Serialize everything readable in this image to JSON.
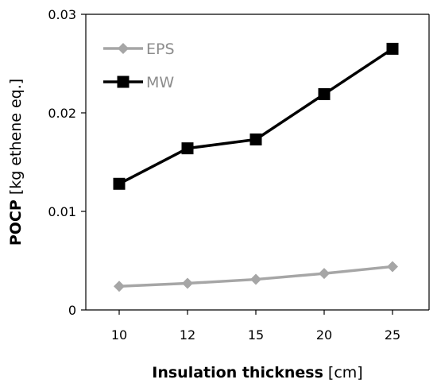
{
  "chart_data": {
    "type": "line",
    "categories": [
      "10",
      "12",
      "15",
      "20",
      "25"
    ],
    "series": [
      {
        "name": "EPS",
        "values": [
          0.0024,
          0.0027,
          0.0031,
          0.0037,
          0.0044
        ],
        "color": "#a6a6a6",
        "marker": "diamond"
      },
      {
        "name": "MW",
        "values": [
          0.0128,
          0.0164,
          0.0173,
          0.0219,
          0.0265
        ],
        "color": "#000000",
        "marker": "square"
      }
    ],
    "xlabel_bold": "Insulation thickness",
    "xlabel_unit": " [cm]",
    "ylabel_bold": "POCP",
    "ylabel_unit": " [kg ethene eq.]",
    "ylim": [
      0,
      0.03
    ],
    "yticks": [
      "0",
      "0.01",
      "0.02",
      "0.03"
    ],
    "grid": false,
    "legend_position": "top-left"
  }
}
